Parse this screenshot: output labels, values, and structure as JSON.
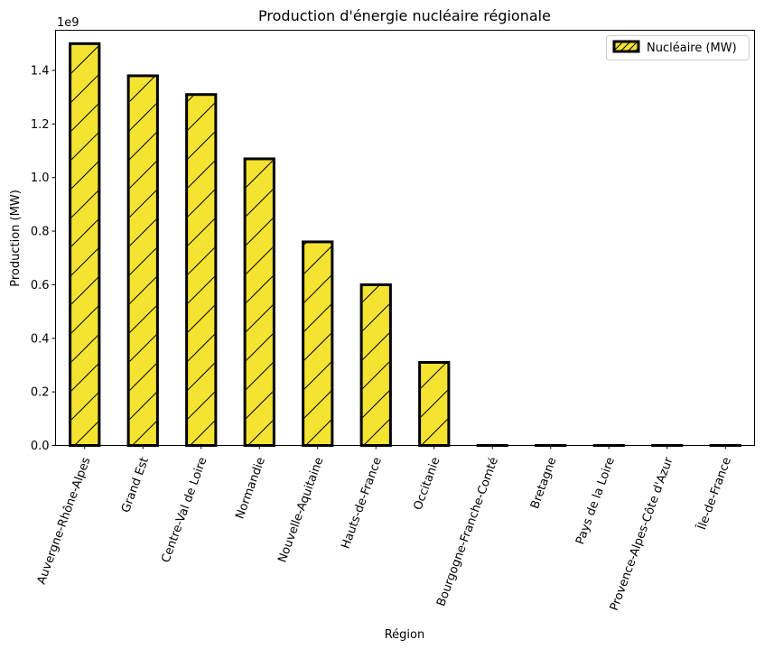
{
  "chart_data": {
    "type": "bar",
    "title": "Production d'énergie nucléaire régionale",
    "xlabel": "Région",
    "ylabel": "Production (MW)",
    "y_offset_label": "1e9",
    "categories": [
      "Auvergne-Rhône-Alpes",
      "Grand Est",
      "Centre-Val de Loire",
      "Normandie",
      "Nouvelle-Aquitaine",
      "Hauts-de-France",
      "Occitanie",
      "Bourgogne-Franche-Comté",
      "Bretagne",
      "Pays de la Loire",
      "Provence-Alpes-Côte d'Azur",
      "Île-de-France"
    ],
    "series": [
      {
        "name": "Nucléaire (MW)",
        "values": [
          1500000000.0,
          1380000000.0,
          1310000000.0,
          1070000000.0,
          760000000.0,
          600000000.0,
          310000000.0,
          0,
          0,
          0,
          0,
          0
        ],
        "color": "#f5e332",
        "edge_color": "#000000",
        "hatch": "/"
      }
    ],
    "ylim": [
      0,
      1550000000.0
    ],
    "y_ticks": [
      0,
      200000000.0,
      400000000.0,
      600000000.0,
      800000000.0,
      1000000000.0,
      1200000000.0,
      1400000000.0
    ],
    "y_tick_labels": [
      "0.0",
      "0.2",
      "0.4",
      "0.6",
      "0.8",
      "1.0",
      "1.2",
      "1.4"
    ],
    "x_tick_rotation": 70,
    "grid": false,
    "legend_position": "top-right"
  }
}
